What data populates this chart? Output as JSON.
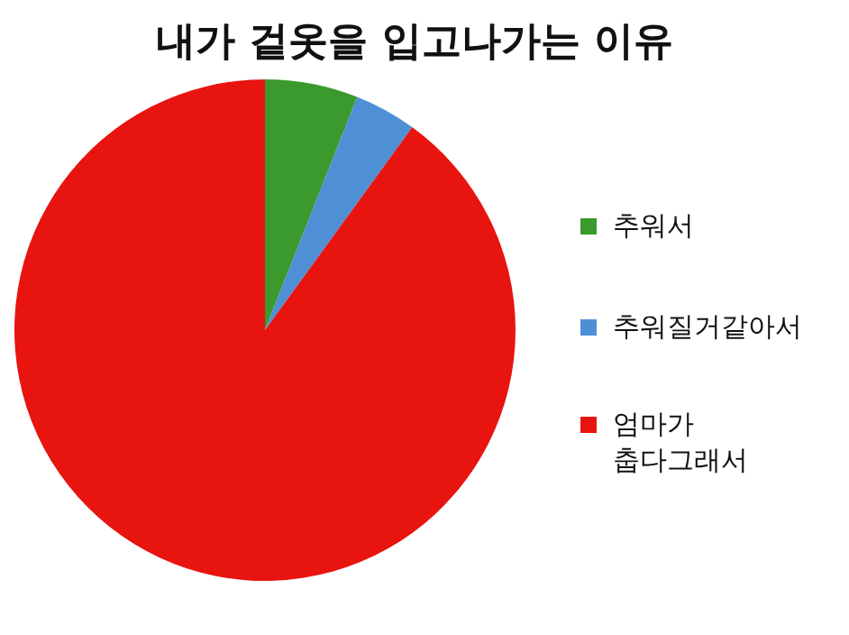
{
  "chart_data": {
    "type": "pie",
    "title": "내가 겉옷을 입고나가는 이유",
    "categories": [
      "추워서",
      "추워질거같아서",
      "엄마가 춥다그래서"
    ],
    "values": [
      6,
      4,
      90
    ],
    "colors": [
      "#3a9a2e",
      "#4f8fd6",
      "#e8140f"
    ],
    "legend": "right"
  }
}
